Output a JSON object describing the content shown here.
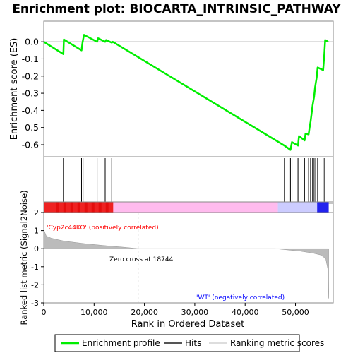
{
  "chart_data": {
    "type": "line",
    "title": "Enrichment plot: BIOCARTA_INTRINSIC_PATHWAY",
    "top_panel": {
      "ylabel": "Enrichment score (ES)",
      "ylim": [
        -0.67,
        0.12
      ],
      "yticks": [
        0.0,
        -0.1,
        -0.2,
        -0.3,
        -0.4,
        -0.5,
        -0.6
      ],
      "ytick_labels": [
        "0.0",
        "-0.1",
        "-0.2",
        "-0.3",
        "-0.4",
        "-0.5",
        "-0.6"
      ],
      "series": [
        {
          "name": "Enrichment profile",
          "color": "#00ee00",
          "points": [
            [
              0,
              0.0
            ],
            [
              3900,
              -0.072
            ],
            [
              4000,
              0.013
            ],
            [
              7500,
              -0.05
            ],
            [
              7700,
              -0.005
            ],
            [
              8000,
              0.04
            ],
            [
              10600,
              0.0
            ],
            [
              10800,
              0.02
            ],
            [
              12200,
              0.0
            ],
            [
              12400,
              0.01
            ],
            [
              13500,
              -0.005
            ],
            [
              13700,
              0.0
            ],
            [
              47800,
              -0.605
            ],
            [
              49000,
              -0.63
            ],
            [
              49300,
              -0.585
            ],
            [
              50500,
              -0.605
            ],
            [
              50700,
              -0.55
            ],
            [
              51800,
              -0.575
            ],
            [
              52000,
              -0.535
            ],
            [
              52600,
              -0.54
            ],
            [
              52800,
              -0.5
            ],
            [
              53000,
              -0.465
            ],
            [
              53200,
              -0.42
            ],
            [
              53400,
              -0.37
            ],
            [
              53700,
              -0.32
            ],
            [
              53900,
              -0.265
            ],
            [
              54200,
              -0.21
            ],
            [
              54400,
              -0.15
            ],
            [
              55500,
              -0.165
            ],
            [
              55700,
              -0.085
            ],
            [
              55900,
              0.01
            ],
            [
              56500,
              0.0
            ]
          ]
        }
      ]
    },
    "hits": {
      "name": "Hits",
      "positions": [
        3900,
        7500,
        7800,
        10600,
        12200,
        13500,
        47800,
        49000,
        49300,
        50500,
        51800,
        52600,
        53000,
        53400,
        53700,
        54000,
        54400,
        55500,
        55800
      ]
    },
    "bottom_panel": {
      "ylabel": "Ranked list metric (Signal2Noise)",
      "ylim": [
        -3,
        2
      ],
      "yticks": [
        2,
        1,
        0,
        -1,
        -2,
        -3
      ],
      "ytick_labels": [
        "2",
        "1",
        "0",
        "-1",
        "-2",
        "-3"
      ],
      "series_name": "Ranking metric scores",
      "profile": [
        [
          0,
          1.05
        ],
        [
          500,
          0.7
        ],
        [
          1500,
          0.58
        ],
        [
          4000,
          0.42
        ],
        [
          8000,
          0.28
        ],
        [
          12000,
          0.17
        ],
        [
          16000,
          0.08
        ],
        [
          18744,
          0.0
        ],
        [
          46000,
          0.0
        ],
        [
          48000,
          -0.06
        ],
        [
          51000,
          -0.14
        ],
        [
          53500,
          -0.25
        ],
        [
          55000,
          -0.35
        ],
        [
          56000,
          -0.55
        ],
        [
          56400,
          -1.1
        ],
        [
          56600,
          -2.75
        ]
      ],
      "zero_cross_label": "Zero cross at 18744",
      "zero_cross": 18744,
      "pos_label": "'Cyp2c44KO' (positively correlated)",
      "neg_label": "'WT' (negatively correlated)"
    },
    "xlabel": "Rank in Ordered Dataset",
    "xlim": [
      0,
      57500
    ],
    "xticks": [
      0,
      10000,
      20000,
      30000,
      40000,
      50000
    ],
    "xtick_labels": [
      "0",
      "10,000",
      "20,000",
      "30,000",
      "40,000",
      "50,000"
    ],
    "legend": {
      "placement": "bottom",
      "items": [
        "Enrichment profile",
        "Hits",
        "Ranking metric scores"
      ]
    },
    "colors": {
      "profile": "#00ee00",
      "pos_label": "#ff0000",
      "neg_label": "#0000ff",
      "bar_red": "#ee2222",
      "bar_pink": "#ffbbee",
      "bar_lavender": "#ccccff",
      "bar_blue": "#2222ee",
      "metric_fill": "#bbbbbb"
    }
  }
}
